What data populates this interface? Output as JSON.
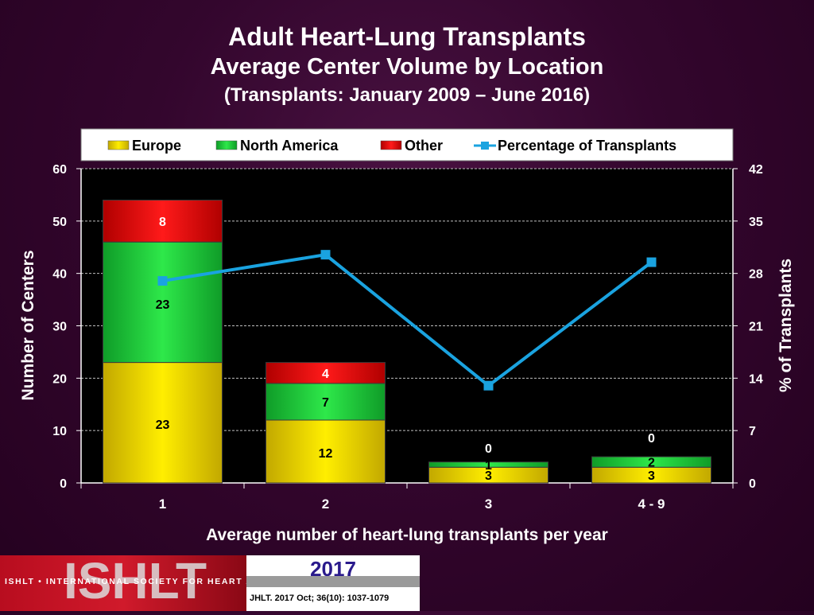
{
  "title": "Adult Heart-Lung Transplants",
  "subtitle": "Average Center Volume by Location",
  "subtitle2": "(Transplants: January 2009 – June 2016)",
  "footer": {
    "logo_text": "ISHLT",
    "org_line": "ISHLT • INTERNATIONAL SOCIETY FOR HEART AND LUNG TRANSPLANTATION",
    "year": "2017",
    "citation": "JHLT. 2017 Oct; 36(10): 1037-1079"
  },
  "chart_data": {
    "type": "bar",
    "stacked": true,
    "categories": [
      "1",
      "2",
      "3",
      "4 - 9"
    ],
    "series": [
      {
        "name": "Europe",
        "values": [
          23,
          12,
          3,
          3
        ],
        "labels": [
          "23",
          "12",
          "3",
          "3"
        ],
        "color": "#e8d400"
      },
      {
        "name": "North America",
        "values": [
          23,
          7,
          1,
          2
        ],
        "labels": [
          "23",
          "7",
          "1",
          "2"
        ],
        "color": "#1fcf3a"
      },
      {
        "name": "Other",
        "values": [
          8,
          4,
          0,
          0
        ],
        "labels": [
          "8",
          "4",
          "0",
          "0"
        ],
        "color": "#e00000"
      }
    ],
    "line_series": {
      "name": "Percentage of Transplants",
      "axis": "right",
      "values": [
        27,
        30.5,
        13,
        29.5
      ],
      "color": "#1aa3e0"
    },
    "xlabel": "Average number of heart-lung transplants per year",
    "ylabel": "Number of Centers",
    "y2label": "% of Transplants",
    "ylim": [
      0,
      60
    ],
    "y2lim": [
      0,
      42
    ],
    "yticks": [
      0,
      10,
      20,
      30,
      40,
      50,
      60
    ],
    "y2ticks": [
      0,
      7,
      14,
      21,
      28,
      35,
      42
    ],
    "grid": true,
    "legend_position": "top",
    "plot_background": "#000000"
  }
}
